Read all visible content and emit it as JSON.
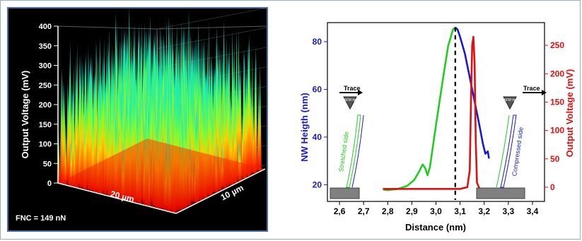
{
  "chart_data": [
    {
      "type": "surface3d",
      "zlabel": "Output Voltage (mV)",
      "z_ticks": [
        0,
        50,
        100,
        150,
        200,
        250,
        300,
        350,
        400
      ],
      "zlim": [
        0,
        400
      ],
      "x_axis_label": "20 µm",
      "y_axis_label": "10 µm",
      "annotation": "FNC = 149 nN",
      "colormap": [
        "#ff0000",
        "#ff8c00",
        "#ffff00",
        "#40ff40",
        "#00e0ff"
      ]
    },
    {
      "type": "line",
      "xlabel": "Distance (nm)",
      "ylabel_left": "NW Heigth (nm)",
      "ylabel_right": "Output Voltage (mV)",
      "x_ticks": [
        "2,6",
        "2,7",
        "2,8",
        "2,9",
        "3,0",
        "3,1",
        "3,2",
        "3,3",
        "3,4"
      ],
      "x_tick_values": [
        2.6,
        2.7,
        2.8,
        2.9,
        3.0,
        3.1,
        3.2,
        3.3,
        3.4
      ],
      "xlim": [
        2.55,
        3.45
      ],
      "y_left_ticks": [
        20,
        40,
        60,
        80
      ],
      "ylim_left": [
        13,
        88
      ],
      "y_right_ticks": [
        0,
        50,
        100,
        150,
        200,
        250
      ],
      "ylim_right": [
        -25,
        290
      ],
      "series": [
        {
          "axis": "left",
          "color": "#22cc22",
          "x": [
            2.78,
            2.8,
            2.84,
            2.88,
            2.91,
            2.93,
            2.945,
            2.955,
            2.965,
            2.975,
            3.0,
            3.03,
            3.05,
            3.07,
            3.08
          ],
          "y": [
            18,
            17.7,
            18.2,
            19.5,
            22,
            25.5,
            28.5,
            27,
            24,
            27.5,
            45,
            65,
            78,
            85,
            86
          ]
        },
        {
          "axis": "left",
          "color": "#1a1acc",
          "x": [
            3.08,
            3.09,
            3.1,
            3.12,
            3.14,
            3.16,
            3.18,
            3.195,
            3.205,
            3.215,
            3.22
          ],
          "y": [
            86,
            85,
            82,
            75,
            65,
            55,
            45,
            37,
            33,
            34,
            31
          ]
        },
        {
          "axis": "right",
          "color": "#e01010",
          "x": [
            2.78,
            2.9,
            3.0,
            3.1,
            3.13,
            3.14,
            3.145,
            3.15,
            3.155,
            3.16,
            3.165,
            3.17,
            3.18,
            3.2,
            3.22
          ],
          "y": [
            -3,
            -3,
            -3,
            -3,
            0,
            30,
            150,
            250,
            265,
            220,
            80,
            8,
            -2,
            -3,
            -3
          ]
        }
      ],
      "dashed_line_x": 3.08,
      "insets": [
        {
          "title": "Trace",
          "tip_label": "AFM tip",
          "side_label": "Stretched side"
        },
        {
          "title": "Trace",
          "tip_label": "AFM tip",
          "side_label": "Compressed side"
        }
      ]
    }
  ]
}
